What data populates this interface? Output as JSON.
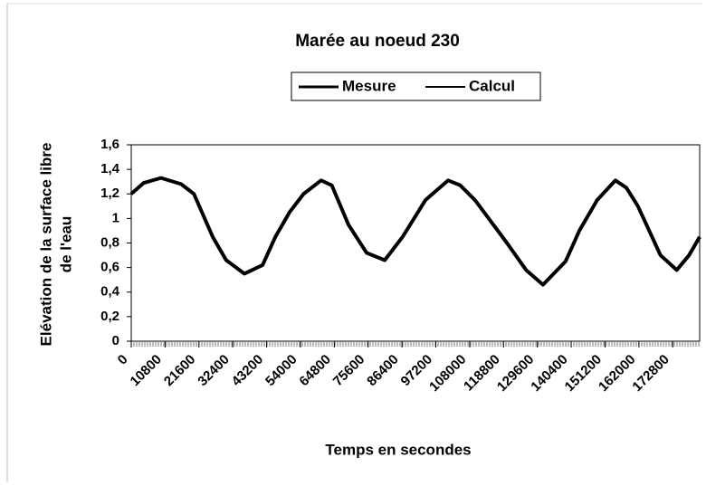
{
  "chart_data": {
    "type": "line",
    "title": "Marée au noeud 230",
    "xlabel": "Temps en secondes",
    "ylabel": [
      "Elévation de la surface libre",
      "de l'eau"
    ],
    "legend": "top",
    "x": [
      0,
      4000,
      9500,
      15900,
      20000,
      26000,
      30300,
      36100,
      41900,
      46000,
      50500,
      55000,
      60600,
      64000,
      69300,
      75100,
      80900,
      86600,
      93900,
      101100,
      105000,
      109700,
      119900,
      126000,
      131400,
      138600,
      143000,
      148700,
      154500,
      158000,
      161700,
      168900,
      174100,
      178000,
      181400
    ],
    "series": [
      {
        "name": "Mesure",
        "color": "#000000",
        "values": [
          1.2,
          1.29,
          1.33,
          1.28,
          1.2,
          0.85,
          0.66,
          0.55,
          0.62,
          0.85,
          1.05,
          1.2,
          1.31,
          1.27,
          0.95,
          0.72,
          0.66,
          0.85,
          1.15,
          1.31,
          1.27,
          1.15,
          0.8,
          0.58,
          0.46,
          0.65,
          0.9,
          1.15,
          1.31,
          1.25,
          1.1,
          0.7,
          0.58,
          0.7,
          0.85
        ]
      },
      {
        "name": "Calcul",
        "color": "#000000",
        "values": [
          1.2,
          1.29,
          1.33,
          1.28,
          1.2,
          0.85,
          0.66,
          0.55,
          0.62,
          0.85,
          1.05,
          1.2,
          1.31,
          1.27,
          0.95,
          0.72,
          0.66,
          0.85,
          1.15,
          1.31,
          1.27,
          1.15,
          0.8,
          0.58,
          0.46,
          0.65,
          0.9,
          1.15,
          1.31,
          1.25,
          1.1,
          0.7,
          0.58,
          0.7,
          0.85
        ]
      }
    ],
    "xlim": [
      0,
      181400
    ],
    "xticks": [
      0,
      10800,
      21600,
      32400,
      43200,
      54000,
      64800,
      75600,
      86400,
      97200,
      108000,
      118800,
      129600,
      140400,
      151200,
      162000,
      172800
    ],
    "ylim": [
      0,
      1.6
    ],
    "yticks": [
      0,
      {
        "value": 0.2,
        "label": "0,2"
      },
      {
        "value": 0.4,
        "label": "0,4"
      },
      {
        "value": 0.6,
        "label": "0,6"
      },
      {
        "value": 0.8,
        "label": "0,8"
      },
      1,
      {
        "value": 1.2,
        "label": "1,2"
      },
      {
        "value": 1.4,
        "label": "1,4"
      },
      {
        "value": 1.6,
        "label": "1,6"
      }
    ]
  }
}
